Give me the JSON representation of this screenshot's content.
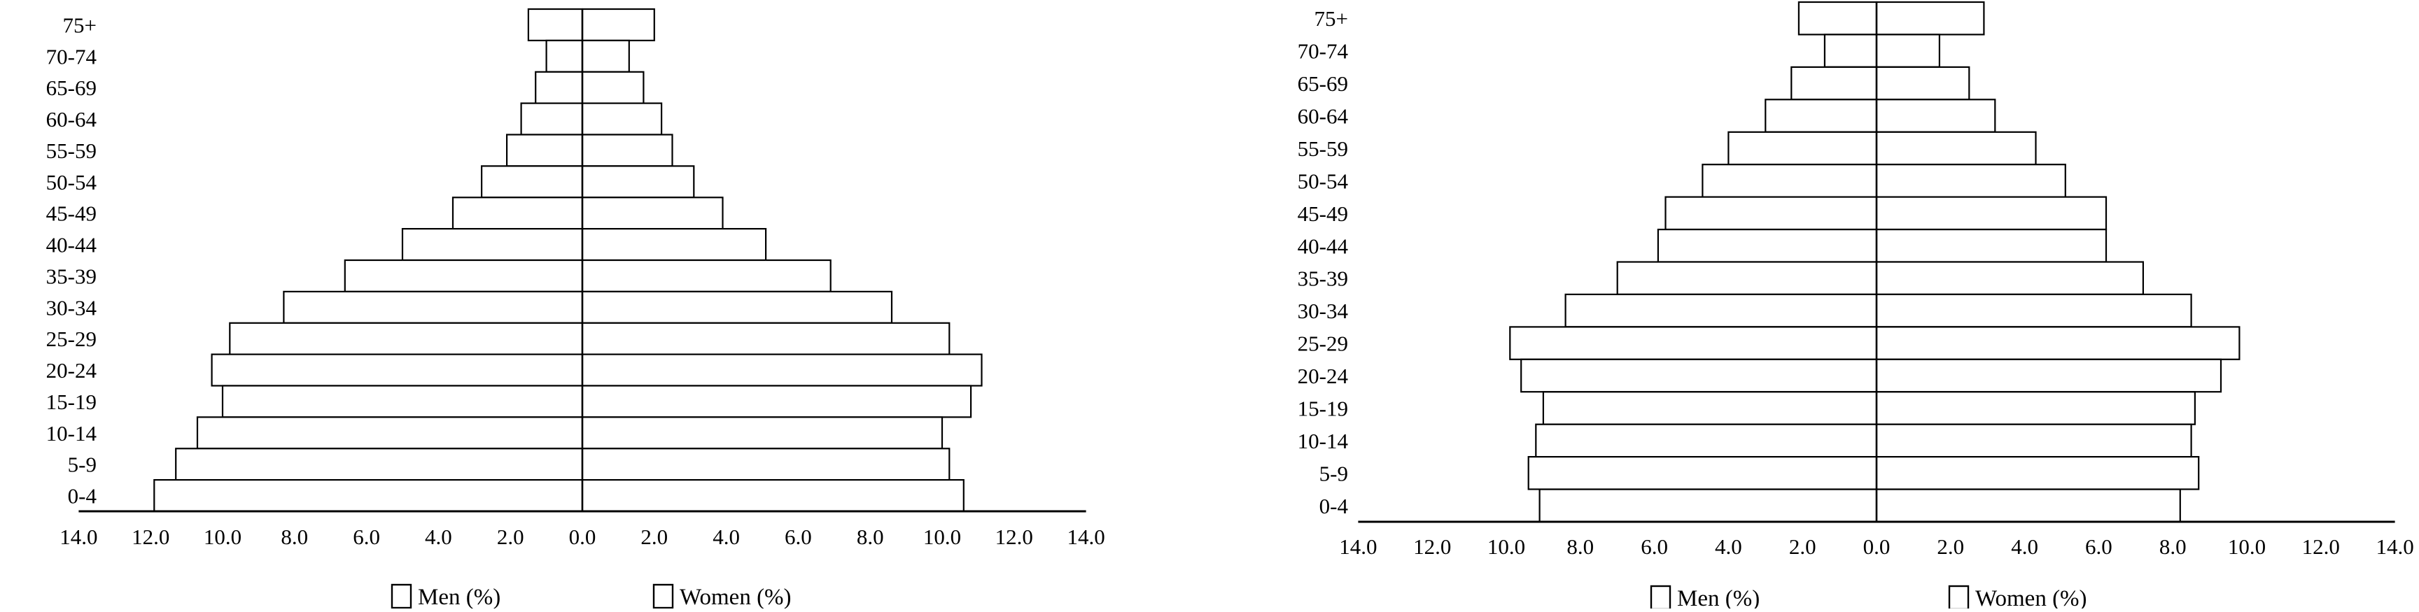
{
  "figure": {
    "background": "#ffffff",
    "ink_color": "#000000",
    "description": "Two mirrored population pyramids (men left, women right) by five-year age group"
  },
  "chart_data": [
    {
      "id": "pyramid-left",
      "type": "bar",
      "subtype": "population-pyramid",
      "orientation": "horizontal-mirrored",
      "bar_fill": "#ffffff",
      "bar_stroke": "#000000",
      "age_groups_top_to_bottom": [
        "75+",
        "70-74",
        "65-69",
        "60-64",
        "55-59",
        "50-54",
        "45-49",
        "40-44",
        "35-39",
        "30-34",
        "25-29",
        "20-24",
        "15-19",
        "10-14",
        "5-9",
        "0-4"
      ],
      "xlim_each_side": [
        0,
        14
      ],
      "grid": false,
      "x_tick_labels": [
        "14.0",
        "12.0",
        "10.0",
        "8.0",
        "6.0",
        "4.0",
        "2.0",
        "0.0",
        "2.0",
        "4.0",
        "6.0",
        "8.0",
        "10.0",
        "12.0",
        "14.0"
      ],
      "series": [
        {
          "name": "Men (%)",
          "side": "left",
          "values_by_age_ascending": [
            11.9,
            11.3,
            10.7,
            10.0,
            10.3,
            9.8,
            8.3,
            6.6,
            5.0,
            3.6,
            2.8,
            2.1,
            1.7,
            1.3,
            1.0,
            1.5
          ]
        },
        {
          "name": "Women (%)",
          "side": "right",
          "values_by_age_ascending": [
            10.6,
            10.2,
            10.0,
            10.8,
            11.1,
            10.2,
            8.6,
            6.9,
            5.1,
            3.9,
            3.1,
            2.5,
            2.2,
            1.7,
            1.3,
            2.0
          ]
        }
      ],
      "legend": [
        {
          "swatch": "empty-square",
          "label": "Men (%)"
        },
        {
          "swatch": "empty-square",
          "label": "Women (%)"
        }
      ],
      "legend_position": "bottom"
    },
    {
      "id": "pyramid-right",
      "type": "bar",
      "subtype": "population-pyramid",
      "orientation": "horizontal-mirrored",
      "bar_fill": "#ffffff",
      "bar_stroke": "#000000",
      "age_groups_top_to_bottom": [
        "75+",
        "70-74",
        "65-69",
        "60-64",
        "55-59",
        "50-54",
        "45-49",
        "40-44",
        "35-39",
        "30-34",
        "25-29",
        "20-24",
        "15-19",
        "10-14",
        "5-9",
        "0-4"
      ],
      "xlim_each_side": [
        0,
        14
      ],
      "grid": false,
      "x_tick_labels": [
        "14.0",
        "12.0",
        "10.0",
        "8.0",
        "6.0",
        "4.0",
        "2.0",
        "0.0",
        "2.0",
        "4.0",
        "6.0",
        "8.0",
        "10.0",
        "12.0",
        "14.0"
      ],
      "series": [
        {
          "name": "Men (%)",
          "side": "left",
          "values_by_age_ascending": [
            9.1,
            9.4,
            9.2,
            9.0,
            9.6,
            9.9,
            8.4,
            7.0,
            5.9,
            5.7,
            4.7,
            4.0,
            3.0,
            2.3,
            1.4,
            2.1
          ]
        },
        {
          "name": "Women (%)",
          "side": "right",
          "values_by_age_ascending": [
            8.2,
            8.7,
            8.5,
            8.6,
            9.3,
            9.8,
            8.5,
            7.2,
            6.2,
            6.2,
            5.1,
            4.3,
            3.2,
            2.5,
            1.7,
            2.9
          ]
        }
      ],
      "legend": [
        {
          "swatch": "empty-square",
          "label": "Men (%)"
        },
        {
          "swatch": "empty-square",
          "label": "Women (%)"
        }
      ],
      "legend_position": "bottom"
    }
  ]
}
